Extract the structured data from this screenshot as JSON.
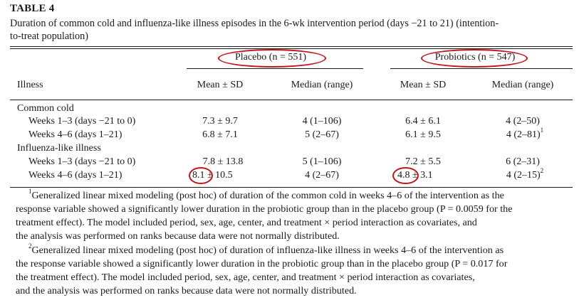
{
  "table": {
    "label": "TABLE 4",
    "caption_line1": "Duration of common cold and influenza-like illness episodes in the 6-wk intervention period (days −21 to 21) (intention-",
    "caption_line2": "to-treat population)"
  },
  "groups": {
    "placebo": "Placebo (n = 551)",
    "probiotics": "Probiotics (n = 547)"
  },
  "columns": {
    "illness": "Illness",
    "placebo_mean": "Mean ± SD",
    "placebo_median": "Median (range)",
    "probiotics_mean": "Mean ± SD",
    "probiotics_median": "Median (range)"
  },
  "sections": [
    {
      "name": "Common cold",
      "rows": [
        {
          "label": "Weeks 1–3 (days −21 to 0)",
          "pl_mean": "7.3 ± 9.7",
          "pl_median": "4 (1–106)",
          "pr_mean": "6.4 ± 6.1",
          "pr_median": "4 (2–50)",
          "pr_median_sup": ""
        },
        {
          "label": "Weeks 4–6 (days 1–21)",
          "pl_mean": "6.8 ± 7.1",
          "pl_median": "5 (2–67)",
          "pr_mean": "6.1 ± 9.5",
          "pr_median": "4 (2–81)",
          "pr_median_sup": "1"
        }
      ]
    },
    {
      "name": "Influenza-like illness",
      "rows": [
        {
          "label": "Weeks 1–3 (days −21 to 0)",
          "pl_mean": "7.8 ± 13.8",
          "pl_median": "5 (1–106)",
          "pr_mean": "7.2 ± 5.5",
          "pr_median": "6 (2–31)",
          "pr_median_sup": ""
        },
        {
          "label": "Weeks 4–6 (days 1–21)",
          "pl_mean_val": "8.1",
          "pl_mean_rest": "± 10.5",
          "pl_median": "4 (2–67)",
          "pr_mean_val": "4.8",
          "pr_mean_rest": "± 3.1",
          "pr_median": "4 (2–15)",
          "pr_median_sup": "2"
        }
      ]
    }
  ],
  "footnotes": {
    "fn1_marker": "1",
    "fn1_lines": [
      "Generalized linear mixed modeling (post hoc) of duration of the common cold in weeks 4–6 of the intervention as the",
      "response variable showed a significantly lower duration in the probiotic group than in the placebo group (P = 0.0059 for the",
      "treatment effect). The model included period, sex, age, center, and treatment × period interaction as covariates, and",
      "the analysis was performed on ranks because data were not normally distributed."
    ],
    "fn2_marker": "2",
    "fn2_lines": [
      "Generalized linear mixed modeling (post hoc) of duration of influenza-like illness in weeks 4–6 of the intervention as",
      "the response variable showed a significantly lower duration in the probiotic group than in the placebo group (P = 0.017 for",
      "the treatment effect). The model included period, sex, age, center, and treatment × period interaction as covariates,",
      "and the analysis was performed on ranks because data were not normally distributed."
    ]
  },
  "annotation_color": "#c4141a"
}
